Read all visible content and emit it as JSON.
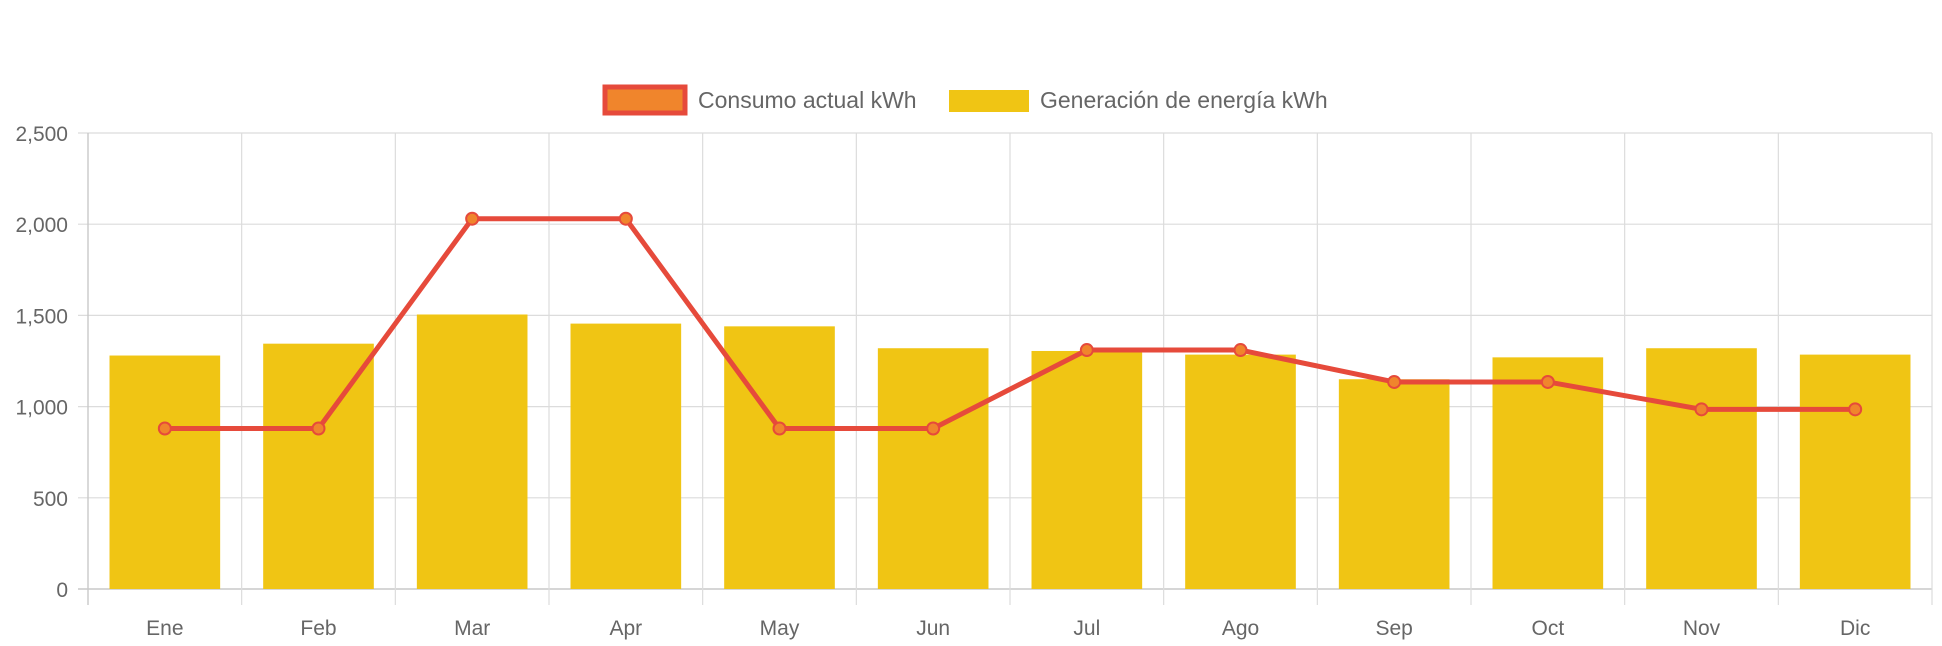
{
  "chart_data": {
    "type": "bar",
    "categories": [
      "Ene",
      "Feb",
      "Mar",
      "Apr",
      "May",
      "Jun",
      "Jul",
      "Ago",
      "Sep",
      "Oct",
      "Nov",
      "Dic"
    ],
    "series": [
      {
        "name": "Consumo actual kWh",
        "type": "line",
        "color": "#e64a3b",
        "point_fill": "#f0852c",
        "values": [
          880,
          880,
          2030,
          2030,
          880,
          880,
          1310,
          1310,
          1135,
          1135,
          985,
          985
        ]
      },
      {
        "name": "Generación de energía kWh",
        "type": "bar",
        "color": "#f0c514",
        "values": [
          1280,
          1345,
          1505,
          1455,
          1440,
          1320,
          1305,
          1285,
          1150,
          1270,
          1320,
          1285
        ]
      }
    ],
    "ylim": [
      0,
      2500
    ],
    "yticks": [
      0,
      500,
      1000,
      1500,
      2000,
      2500
    ],
    "ytick_labels": [
      "0",
      "500",
      "1,000",
      "1,500",
      "2,000",
      "2,500"
    ],
    "title": "",
    "xlabel": "",
    "ylabel": "",
    "grid": true,
    "legend": "top-center"
  }
}
